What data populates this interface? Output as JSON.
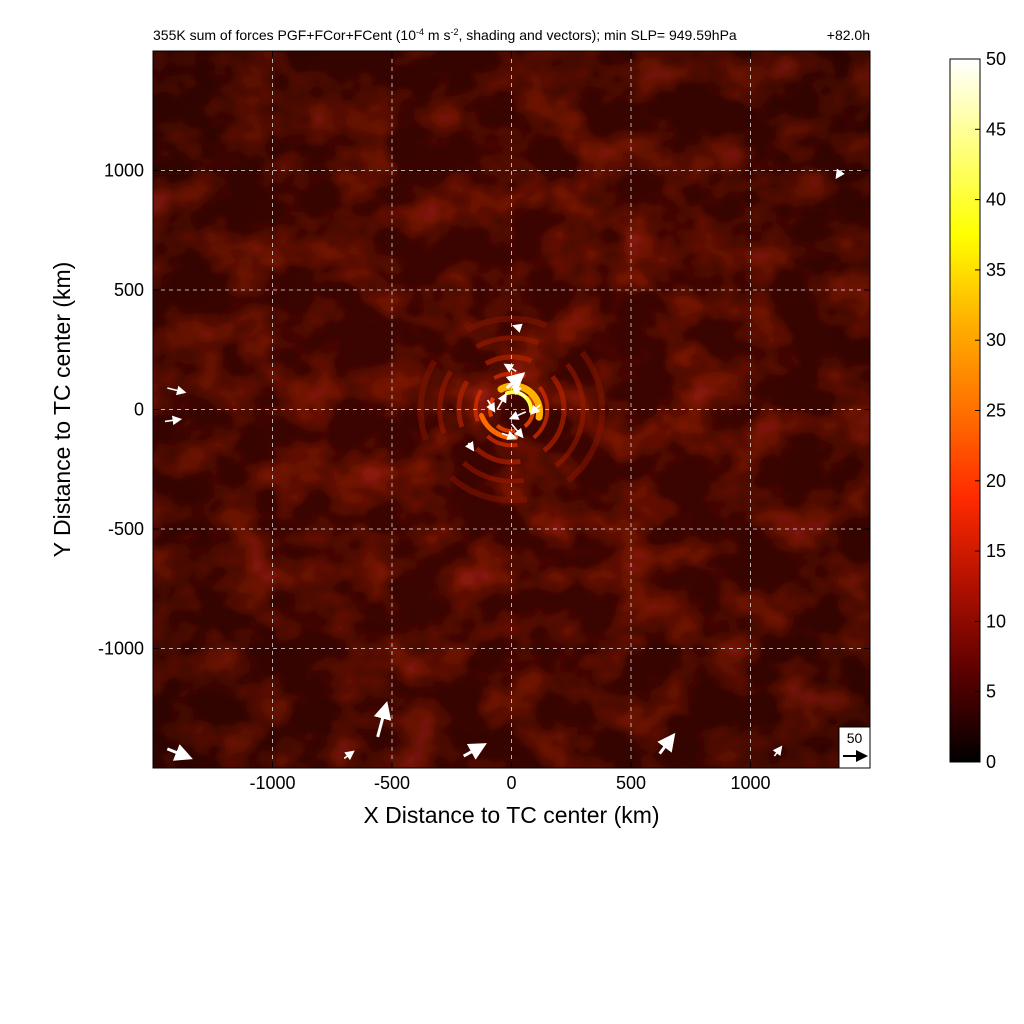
{
  "chart_data": {
    "type": "heatmap",
    "title": "355K sum of forces PGF+FCor+FCent (10^-4 m s^-2, shading and vectors); min SLP= 949.59hPa",
    "title_main": "355K sum of forces PGF+FCor+FCent (10",
    "title_exp": "-4",
    "title_mid": " m s",
    "title_exp2": "-2",
    "title_tail": ", shading and vectors); min SLP= 949.59hPa",
    "time_label": "+82.0h",
    "xlabel": "X Distance to TC center (km)",
    "ylabel": "Y Distance to TC center (km)",
    "xlim": [
      -1500,
      1500
    ],
    "ylim": [
      -1500,
      1500
    ],
    "x_ticks": [
      -1000,
      -500,
      0,
      500,
      1000
    ],
    "y_ticks": [
      1000,
      500,
      0,
      -500,
      -1000
    ],
    "x_tick_labels": [
      "-1000",
      "-500",
      "0",
      "500",
      "1000"
    ],
    "y_tick_labels": [
      "1000",
      "500",
      "0",
      "-500",
      "-1000"
    ],
    "grid": true,
    "colorbar": {
      "min": 0,
      "max": 50,
      "ticks": [
        0,
        5,
        10,
        15,
        20,
        25,
        30,
        35,
        40,
        45,
        50
      ],
      "tick_labels": [
        "0",
        "5",
        "10",
        "15",
        "20",
        "25",
        "30",
        "35",
        "40",
        "45",
        "50"
      ],
      "colors": [
        "#000000",
        "#5a0000",
        "#b01000",
        "#ff2a00",
        "#ff7000",
        "#ffb000",
        "#ffff00",
        "#ffff80",
        "#ffffff"
      ]
    },
    "reference_vector": {
      "label": "50",
      "value": 50
    },
    "features": {
      "max_value_km": [
        40,
        60
      ],
      "background_level": 6,
      "core_level": 42
    },
    "vectors": [
      {
        "x": -20,
        "y": 90,
        "u": 14,
        "v": 12
      },
      {
        "x": 60,
        "y": 50,
        "u": -12,
        "v": 10
      },
      {
        "x": 60,
        "y": -10,
        "u": -14,
        "v": -6
      },
      {
        "x": 0,
        "y": -60,
        "u": 10,
        "v": -12
      },
      {
        "x": -60,
        "y": 0,
        "u": 8,
        "v": 14
      },
      {
        "x": 20,
        "y": 160,
        "u": -10,
        "v": 6
      },
      {
        "x": -100,
        "y": 40,
        "u": 6,
        "v": -10
      },
      {
        "x": 120,
        "y": 20,
        "u": -8,
        "v": -8
      },
      {
        "x": -40,
        "y": -100,
        "u": 12,
        "v": -4
      },
      {
        "x": 40,
        "y": 340,
        "u": -6,
        "v": 2
      },
      {
        "x": -180,
        "y": -140,
        "u": 4,
        "v": -6
      },
      {
        "x": -560,
        "y": -1370,
        "u": 8,
        "v": 30
      },
      {
        "x": -1440,
        "y": -1420,
        "u": 20,
        "v": -8
      },
      {
        "x": -200,
        "y": -1450,
        "u": 18,
        "v": 10
      },
      {
        "x": 620,
        "y": -1440,
        "u": 12,
        "v": 16
      },
      {
        "x": -1440,
        "y": 90,
        "u": 16,
        "v": -4
      },
      {
        "x": -1450,
        "y": -50,
        "u": 14,
        "v": 2
      },
      {
        "x": 1380,
        "y": 1000,
        "u": -4,
        "v": -6
      },
      {
        "x": -700,
        "y": -1460,
        "u": 8,
        "v": 6
      },
      {
        "x": 1100,
        "y": -1450,
        "u": 6,
        "v": 8
      }
    ]
  }
}
